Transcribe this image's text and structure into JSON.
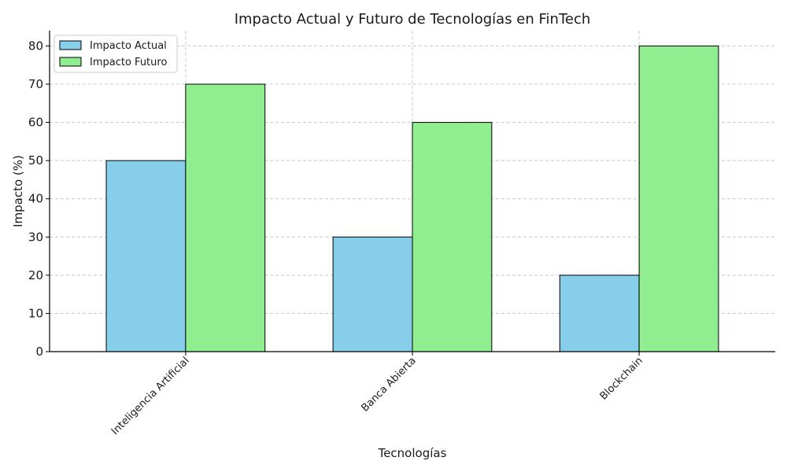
{
  "chart_data": {
    "type": "bar",
    "title": "Impacto Actual y Futuro de Tecnologías en FinTech",
    "xlabel": "Tecnologías",
    "ylabel": "Impacto (%)",
    "categories": [
      "Inteligencia Artificial",
      "Banca Abierta",
      "Blockchain"
    ],
    "series": [
      {
        "name": "Impacto Actual",
        "values": [
          50,
          30,
          20
        ],
        "color": "#87ceeb"
      },
      {
        "name": "Impacto Futuro",
        "values": [
          70,
          60,
          80
        ],
        "color": "#90ee90"
      }
    ],
    "yticks": [
      0,
      10,
      20,
      30,
      40,
      50,
      60,
      70,
      80
    ],
    "ylim": [
      0,
      84
    ],
    "grid": true,
    "legend_position": "top-left"
  }
}
